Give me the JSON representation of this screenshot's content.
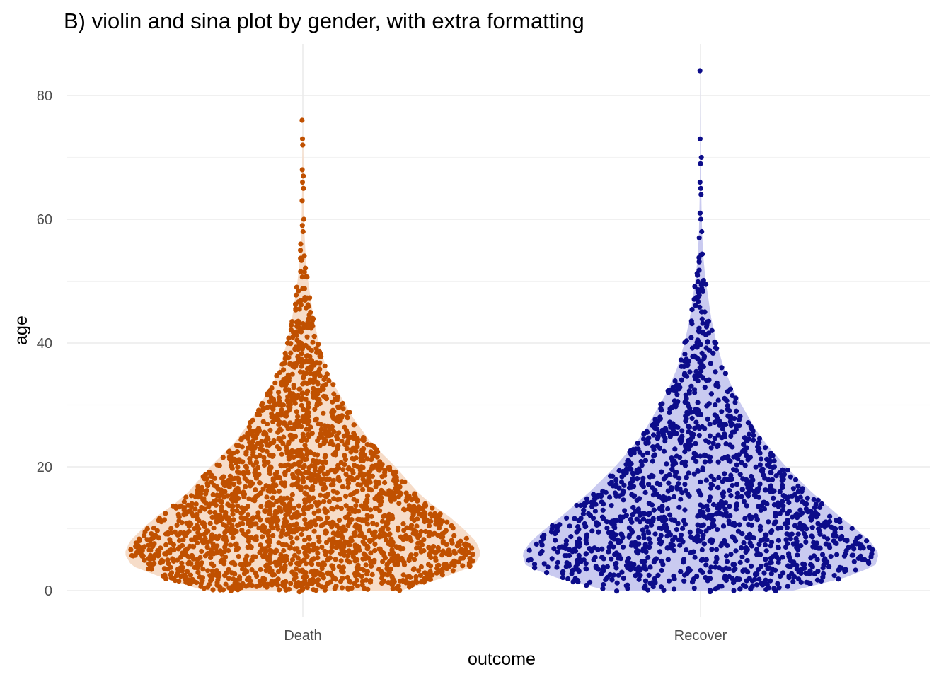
{
  "chart_data": {
    "type": "violin",
    "title": "B) violin and sina plot by gender, with extra formatting",
    "xlabel": "outcome",
    "ylabel": "age",
    "ylim": [
      -4,
      88
    ],
    "y_ticks": [
      0,
      20,
      40,
      60,
      80
    ],
    "categories": [
      "Death",
      "Recover"
    ],
    "grid": true,
    "legend": "none",
    "series": [
      {
        "category": "Death",
        "point_color": "#c05000",
        "fill_color": "#f6dcc8",
        "max": 76,
        "outliers": [
          76,
          73,
          72,
          68,
          67,
          66,
          65,
          63,
          60,
          59,
          58,
          56,
          55
        ],
        "density_profile": [
          [
            0,
            0.55
          ],
          [
            2,
            0.78
          ],
          [
            4,
            0.96
          ],
          [
            6,
            1.0
          ],
          [
            8,
            0.97
          ],
          [
            10,
            0.9
          ],
          [
            12,
            0.82
          ],
          [
            14,
            0.72
          ],
          [
            16,
            0.64
          ],
          [
            18,
            0.58
          ],
          [
            20,
            0.52
          ],
          [
            22,
            0.45
          ],
          [
            24,
            0.38
          ],
          [
            26,
            0.33
          ],
          [
            28,
            0.28
          ],
          [
            30,
            0.24
          ],
          [
            32,
            0.2
          ],
          [
            34,
            0.16
          ],
          [
            36,
            0.13
          ],
          [
            38,
            0.11
          ],
          [
            40,
            0.09
          ],
          [
            42,
            0.075
          ],
          [
            44,
            0.06
          ],
          [
            46,
            0.05
          ],
          [
            48,
            0.04
          ],
          [
            50,
            0.03
          ],
          [
            52,
            0.022
          ],
          [
            54,
            0.016
          ],
          [
            56,
            0.012
          ],
          [
            58,
            0.009
          ],
          [
            60,
            0.007
          ],
          [
            65,
            0.004
          ],
          [
            70,
            0.003
          ],
          [
            76,
            0.0
          ]
        ],
        "n_points": 2400
      },
      {
        "category": "Recover",
        "point_color": "#0c0c8a",
        "fill_color": "#c9caf0",
        "max": 84,
        "outliers": [
          84,
          73,
          70,
          69,
          66,
          65,
          64,
          61,
          60,
          58,
          57
        ],
        "density_profile": [
          [
            0,
            0.52
          ],
          [
            2,
            0.8
          ],
          [
            4,
            0.98
          ],
          [
            6,
            1.0
          ],
          [
            8,
            0.95
          ],
          [
            10,
            0.87
          ],
          [
            12,
            0.78
          ],
          [
            14,
            0.7
          ],
          [
            16,
            0.62
          ],
          [
            18,
            0.55
          ],
          [
            20,
            0.48
          ],
          [
            22,
            0.42
          ],
          [
            24,
            0.36
          ],
          [
            26,
            0.31
          ],
          [
            28,
            0.27
          ],
          [
            30,
            0.23
          ],
          [
            32,
            0.19
          ],
          [
            34,
            0.16
          ],
          [
            36,
            0.13
          ],
          [
            38,
            0.11
          ],
          [
            40,
            0.09
          ],
          [
            42,
            0.075
          ],
          [
            44,
            0.06
          ],
          [
            46,
            0.05
          ],
          [
            48,
            0.04
          ],
          [
            50,
            0.03
          ],
          [
            52,
            0.022
          ],
          [
            54,
            0.016
          ],
          [
            56,
            0.012
          ],
          [
            58,
            0.009
          ],
          [
            60,
            0.007
          ],
          [
            65,
            0.004
          ],
          [
            70,
            0.003
          ],
          [
            73,
            0.002
          ],
          [
            84,
            0.0
          ]
        ],
        "n_points": 1800
      }
    ]
  }
}
